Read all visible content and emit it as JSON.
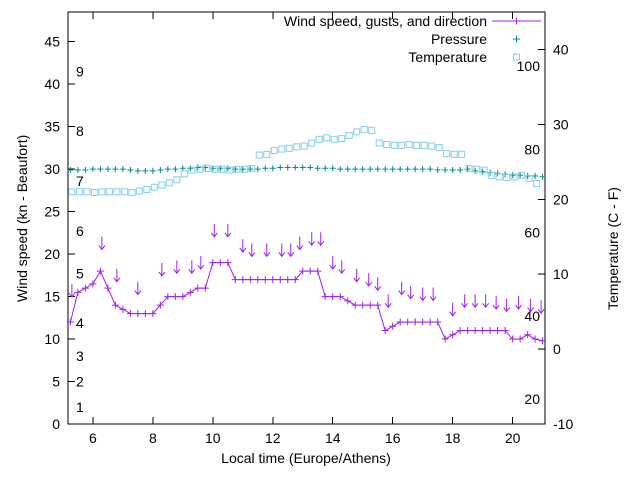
{
  "chart_data": {
    "type": "line",
    "title": "",
    "xlabel": "Local time (Europe/Athens)",
    "ylabel": "Wind speed (kn - Beaufort)",
    "y2label": "Temperature (C - F)",
    "grid": false,
    "legend_position": "top-right",
    "x_range": [
      5.17,
      21.08
    ],
    "y_range": [
      0,
      48.5
    ],
    "y2_range": [
      -10,
      45
    ],
    "x_ticks": [
      6,
      8,
      10,
      12,
      14,
      16,
      18,
      20
    ],
    "y_ticks": [
      0,
      5,
      10,
      15,
      20,
      25,
      30,
      35,
      40,
      45
    ],
    "y2_ticks": [
      -10,
      0,
      10,
      20,
      30,
      40
    ],
    "beaufort_scale_labels": [
      [
        "1",
        2
      ],
      [
        "2",
        5
      ],
      [
        "3",
        8
      ],
      [
        "4",
        11.9
      ],
      [
        "5",
        17.7
      ],
      [
        "6",
        22.7
      ],
      [
        "7",
        28.6
      ],
      [
        "8",
        34.5
      ],
      [
        "9",
        41.5
      ]
    ],
    "fahrenheit_scale_labels": [
      20,
      40,
      60,
      80,
      100
    ],
    "colors": {
      "wind": "#a020f0",
      "pressure": "#008b8b",
      "temperature": "#87ceeb",
      "axis": "#000000"
    },
    "legend": [
      {
        "label": "Wind speed, gusts, and direction",
        "marker": "line-plus",
        "color": "#a020f0"
      },
      {
        "label": "Pressure",
        "marker": "plus",
        "color": "#008b8b"
      },
      {
        "label": "Temperature",
        "marker": "square",
        "color": "#87ceeb"
      }
    ],
    "series": {
      "wind_speed": {
        "name": "Wind speed (kn)",
        "axis": "y1",
        "color": "#a020f0",
        "points": [
          [
            5.25,
            12
          ],
          [
            5.5,
            15.5
          ],
          [
            5.75,
            16
          ],
          [
            6.0,
            16.5
          ],
          [
            6.25,
            18
          ],
          [
            6.5,
            16
          ],
          [
            6.75,
            14
          ],
          [
            7.0,
            13.5
          ],
          [
            7.25,
            13
          ],
          [
            7.5,
            13
          ],
          [
            7.75,
            13
          ],
          [
            8.0,
            13
          ],
          [
            8.25,
            14
          ],
          [
            8.5,
            15
          ],
          [
            8.75,
            15
          ],
          [
            9.0,
            15
          ],
          [
            9.25,
            15.5
          ],
          [
            9.5,
            16
          ],
          [
            9.75,
            16
          ],
          [
            10.0,
            19
          ],
          [
            10.25,
            19
          ],
          [
            10.5,
            19
          ],
          [
            10.75,
            17
          ],
          [
            11.0,
            17
          ],
          [
            11.25,
            17
          ],
          [
            11.5,
            17
          ],
          [
            11.75,
            17
          ],
          [
            12.0,
            17
          ],
          [
            12.25,
            17
          ],
          [
            12.5,
            17
          ],
          [
            12.75,
            17
          ],
          [
            13.0,
            18
          ],
          [
            13.25,
            18
          ],
          [
            13.5,
            18
          ],
          [
            13.75,
            15
          ],
          [
            14.0,
            15
          ],
          [
            14.25,
            15
          ],
          [
            14.5,
            14.5
          ],
          [
            14.75,
            14
          ],
          [
            15.0,
            14
          ],
          [
            15.25,
            14
          ],
          [
            15.5,
            14
          ],
          [
            15.75,
            11
          ],
          [
            16.0,
            11.5
          ],
          [
            16.25,
            12
          ],
          [
            16.5,
            12
          ],
          [
            16.75,
            12
          ],
          [
            17.0,
            12
          ],
          [
            17.25,
            12
          ],
          [
            17.5,
            12
          ],
          [
            17.75,
            10
          ],
          [
            18.0,
            10.5
          ],
          [
            18.25,
            11
          ],
          [
            18.5,
            11
          ],
          [
            18.75,
            11
          ],
          [
            19.0,
            11
          ],
          [
            19.25,
            11
          ],
          [
            19.5,
            11
          ],
          [
            19.75,
            11
          ],
          [
            20.0,
            10
          ],
          [
            20.25,
            10
          ],
          [
            20.5,
            10.5
          ],
          [
            20.75,
            10
          ],
          [
            21.0,
            9.8
          ]
        ]
      },
      "gusts": {
        "name": "Gusts and direction (down arrows = northerly)",
        "axis": "y1",
        "color": "#a020f0",
        "points": [
          [
            5.3,
            15.7
          ],
          [
            6.3,
            21.3
          ],
          [
            6.8,
            17.5
          ],
          [
            7.5,
            16
          ],
          [
            8.3,
            18.2
          ],
          [
            8.8,
            18.5
          ],
          [
            9.3,
            18.5
          ],
          [
            9.6,
            19
          ],
          [
            10.05,
            22.8
          ],
          [
            10.5,
            22.8
          ],
          [
            11.0,
            21
          ],
          [
            11.3,
            20.5
          ],
          [
            11.8,
            20.5
          ],
          [
            12.3,
            20.5
          ],
          [
            12.6,
            20.5
          ],
          [
            12.9,
            21.3
          ],
          [
            13.3,
            21.8
          ],
          [
            13.6,
            21.8
          ],
          [
            14.0,
            19
          ],
          [
            14.3,
            18.5
          ],
          [
            14.8,
            17.5
          ],
          [
            15.2,
            17
          ],
          [
            15.5,
            16.5
          ],
          [
            15.85,
            14.5
          ],
          [
            16.3,
            16
          ],
          [
            16.6,
            15.5
          ],
          [
            17.0,
            15.3
          ],
          [
            17.35,
            15.3
          ],
          [
            18.0,
            13.5
          ],
          [
            18.4,
            14.5
          ],
          [
            18.75,
            14.5
          ],
          [
            19.1,
            14.5
          ],
          [
            19.45,
            14.3
          ],
          [
            19.8,
            14
          ],
          [
            20.2,
            14.3
          ],
          [
            20.6,
            14
          ],
          [
            20.95,
            13.8
          ]
        ]
      },
      "pressure": {
        "name": "Pressure",
        "axis": "y1",
        "color": "#008b8b",
        "points": [
          [
            5.25,
            29.9
          ],
          [
            5.5,
            29.9
          ],
          [
            5.75,
            29.9
          ],
          [
            6,
            30
          ],
          [
            6.25,
            30
          ],
          [
            6.5,
            30
          ],
          [
            6.75,
            30
          ],
          [
            7,
            30
          ],
          [
            7.25,
            29.9
          ],
          [
            7.5,
            29.8
          ],
          [
            7.75,
            29.8
          ],
          [
            8,
            29.8
          ],
          [
            8.25,
            29.9
          ],
          [
            8.5,
            30
          ],
          [
            8.75,
            30
          ],
          [
            9,
            30.1
          ],
          [
            9.25,
            30.1
          ],
          [
            9.5,
            30.2
          ],
          [
            9.75,
            30.2
          ],
          [
            10,
            30.1
          ],
          [
            10.25,
            30.1
          ],
          [
            10.5,
            30.1
          ],
          [
            10.75,
            30
          ],
          [
            11,
            30
          ],
          [
            11.25,
            30
          ],
          [
            11.5,
            30
          ],
          [
            11.75,
            30.1
          ],
          [
            12,
            30.1
          ],
          [
            12.25,
            30.2
          ],
          [
            12.5,
            30.2
          ],
          [
            12.75,
            30.2
          ],
          [
            13,
            30.2
          ],
          [
            13.25,
            30.2
          ],
          [
            13.5,
            30.1
          ],
          [
            13.75,
            30.1
          ],
          [
            14,
            30.1
          ],
          [
            14.25,
            30
          ],
          [
            14.5,
            30
          ],
          [
            14.75,
            30
          ],
          [
            15,
            30
          ],
          [
            15.25,
            30
          ],
          [
            15.5,
            30
          ],
          [
            15.75,
            30
          ],
          [
            16,
            30
          ],
          [
            16.25,
            30
          ],
          [
            16.5,
            30
          ],
          [
            16.75,
            30
          ],
          [
            17,
            30
          ],
          [
            17.25,
            30
          ],
          [
            17.5,
            29.9
          ],
          [
            17.75,
            29.9
          ],
          [
            18,
            29.9
          ],
          [
            18.25,
            29.9
          ],
          [
            18.5,
            30
          ],
          [
            18.75,
            29.8
          ],
          [
            19,
            29.7
          ],
          [
            19.25,
            29.6
          ],
          [
            19.5,
            29.5
          ],
          [
            19.75,
            29.4
          ],
          [
            20,
            29.3
          ],
          [
            20.25,
            29.3
          ],
          [
            20.5,
            29.2
          ],
          [
            20.75,
            29.2
          ],
          [
            21,
            29.1
          ]
        ]
      },
      "temperature": {
        "name": "Temperature (C)",
        "axis": "y2",
        "color": "#87ceeb",
        "points": [
          [
            5.3,
            21
          ],
          [
            5.55,
            21
          ],
          [
            5.8,
            21
          ],
          [
            6.05,
            20.9
          ],
          [
            6.3,
            21
          ],
          [
            6.55,
            21
          ],
          [
            6.8,
            21
          ],
          [
            7.05,
            21
          ],
          [
            7.3,
            20.9
          ],
          [
            7.55,
            21.1
          ],
          [
            7.8,
            21.3
          ],
          [
            8.05,
            21.6
          ],
          [
            8.3,
            21.9
          ],
          [
            8.55,
            22.2
          ],
          [
            8.8,
            22.6
          ],
          [
            9.05,
            23.4
          ],
          [
            9.3,
            23.9
          ],
          [
            9.55,
            24
          ],
          [
            9.8,
            24.1
          ],
          [
            10.05,
            24
          ],
          [
            10.3,
            24
          ],
          [
            10.55,
            23.9
          ],
          [
            10.8,
            24
          ],
          [
            11.05,
            24
          ],
          [
            11.3,
            24.1
          ],
          [
            11.55,
            25.9
          ],
          [
            11.8,
            26
          ],
          [
            12.05,
            26.5
          ],
          [
            12.3,
            26.7
          ],
          [
            12.55,
            26.8
          ],
          [
            12.8,
            27
          ],
          [
            13.05,
            27.1
          ],
          [
            13.3,
            27.5
          ],
          [
            13.55,
            28
          ],
          [
            13.8,
            28.2
          ],
          [
            14.05,
            28
          ],
          [
            14.3,
            28.1
          ],
          [
            14.55,
            28.5
          ],
          [
            14.8,
            29
          ],
          [
            15.05,
            29.3
          ],
          [
            15.3,
            29.2
          ],
          [
            15.55,
            27.5
          ],
          [
            15.8,
            27.3
          ],
          [
            16.05,
            27.2
          ],
          [
            16.3,
            27.2
          ],
          [
            16.55,
            27.3
          ],
          [
            16.8,
            27.2
          ],
          [
            17.05,
            27.2
          ],
          [
            17.3,
            27.1
          ],
          [
            17.55,
            26.9
          ],
          [
            17.8,
            26.1
          ],
          [
            18.05,
            26
          ],
          [
            18.3,
            26
          ],
          [
            18.55,
            24.1
          ],
          [
            18.8,
            24
          ],
          [
            19.05,
            23.9
          ],
          [
            19.3,
            23.2
          ],
          [
            19.55,
            23
          ],
          [
            19.8,
            22.9
          ],
          [
            20.05,
            23
          ],
          [
            20.3,
            23.2
          ],
          [
            20.55,
            22.8
          ],
          [
            20.8,
            22.1
          ]
        ]
      }
    }
  }
}
